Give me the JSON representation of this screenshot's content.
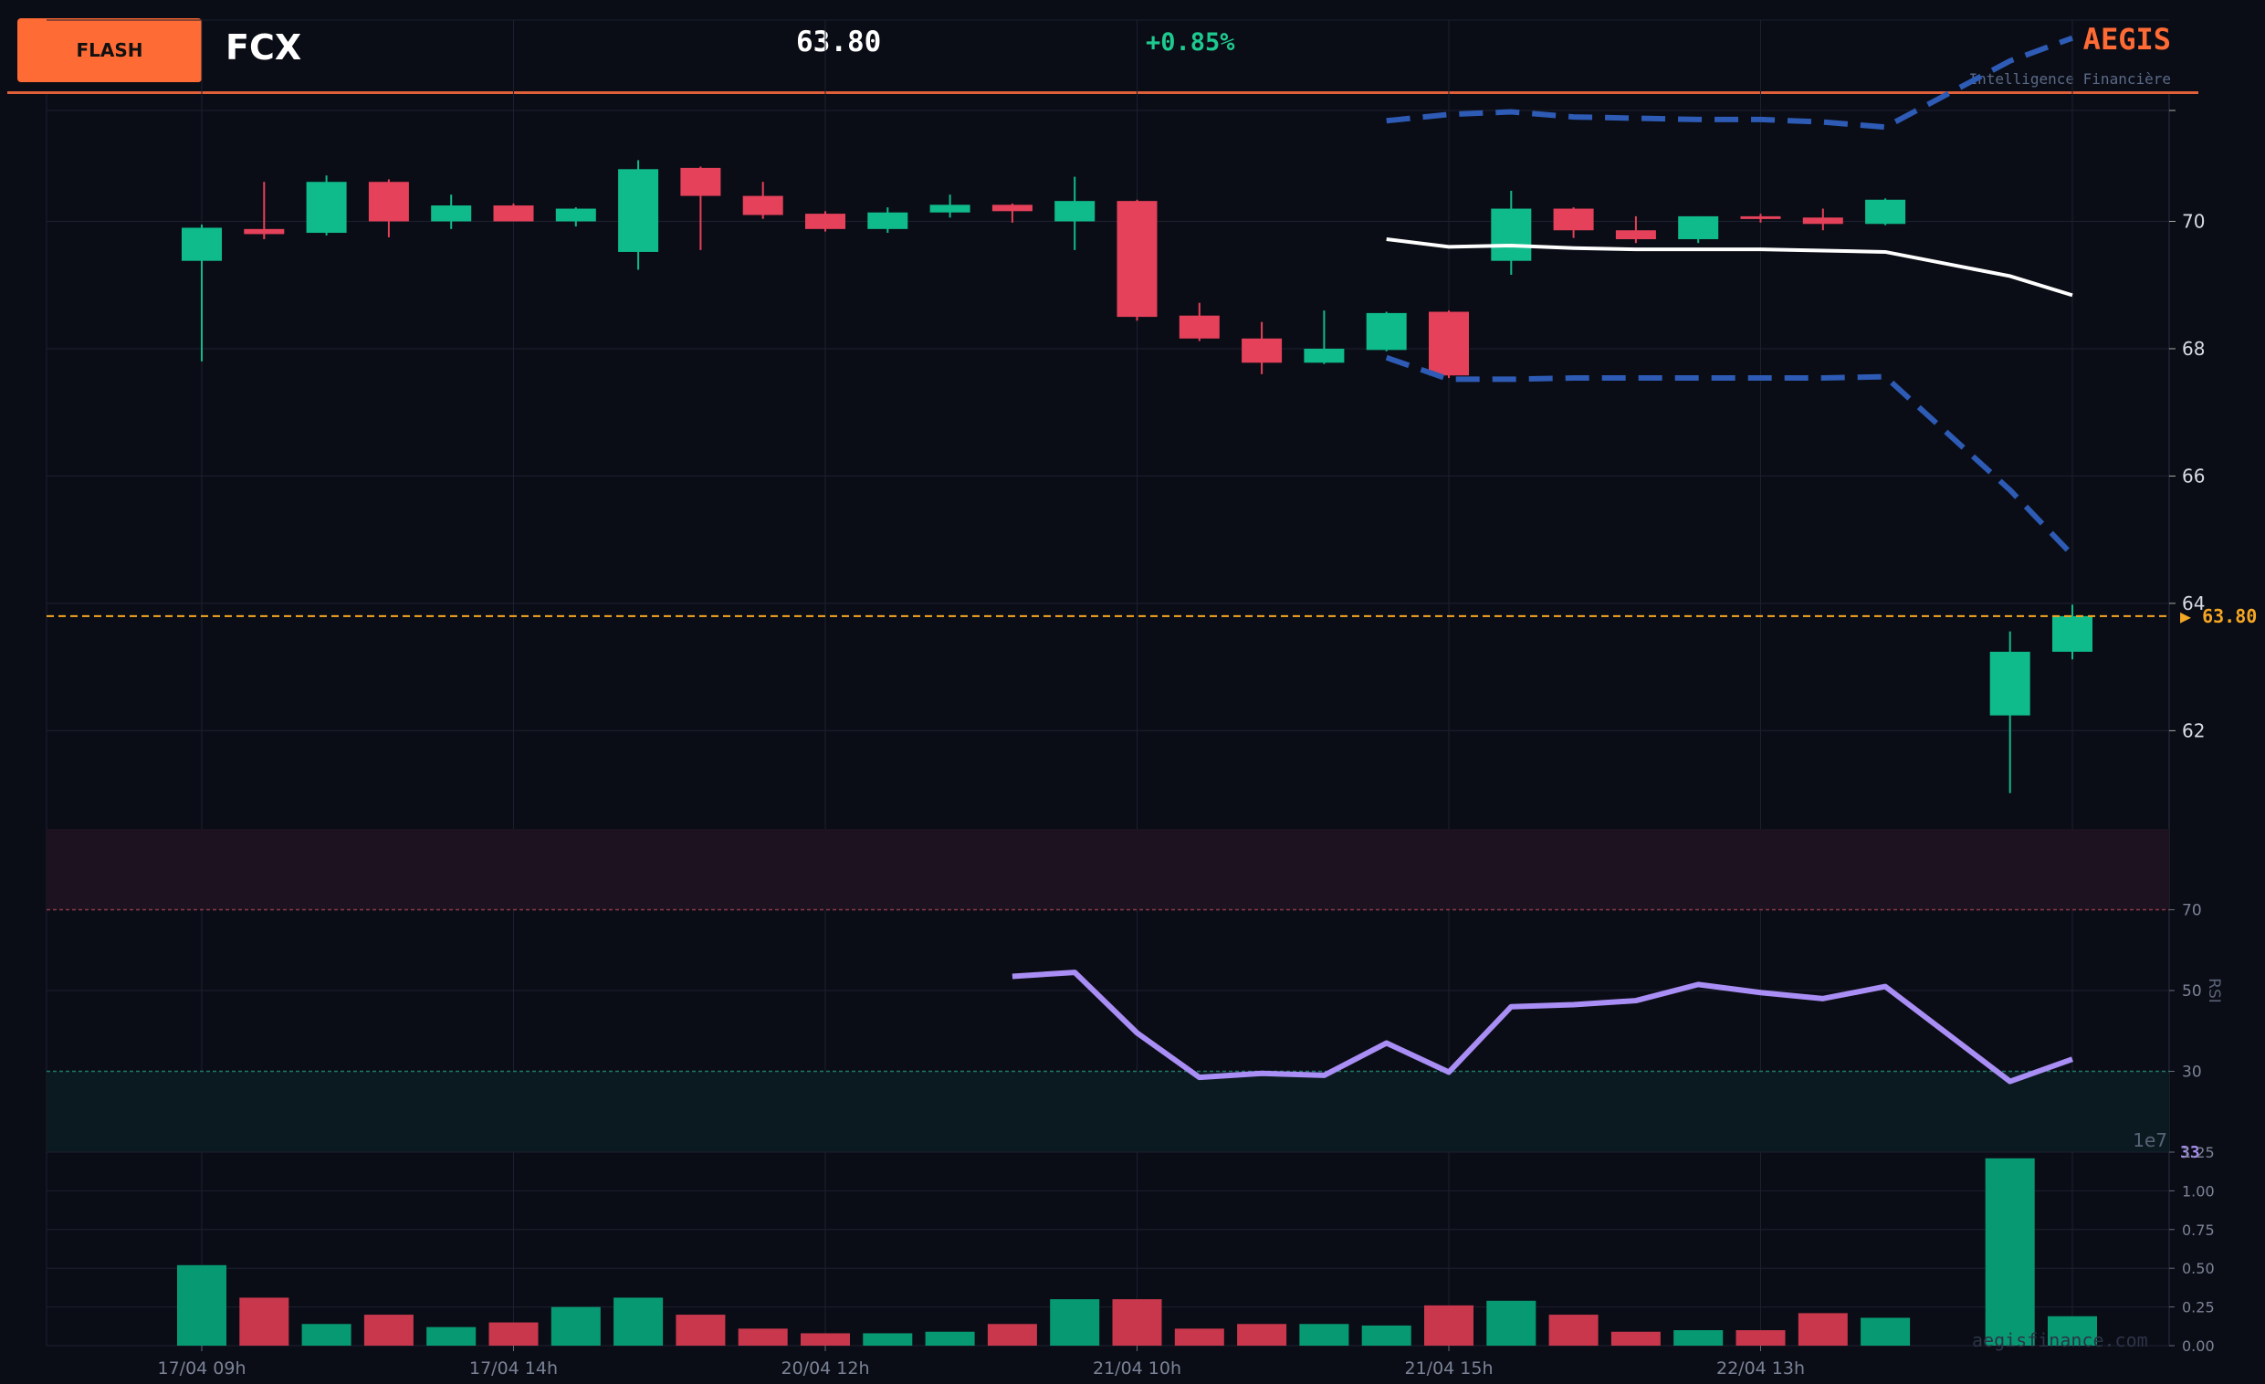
{
  "header": {
    "badge": "FLASH",
    "ticker": "FCX",
    "price": "63.80",
    "change": "+0.85%",
    "brand": "AEGIS",
    "tagline": "Intelligence Financière"
  },
  "footer": {
    "watermark": "aegisfinance.com"
  },
  "colors": {
    "up": "#0fbb8a",
    "down": "#e5415a",
    "accent": "#ff6b35",
    "rsi": "#a98ef5",
    "band": "#2d5bb5",
    "mid": "#ffffff",
    "last": "#f5a623"
  },
  "chart_data": [
    {
      "type": "candlestick",
      "title": "",
      "ylim": [
        60.5,
        72
      ],
      "y_ticks": [
        "62",
        "64",
        "66",
        "68",
        "70"
      ],
      "x_tick_labels": [
        {
          "index": 0,
          "label": "17/04 09h"
        },
        {
          "index": 5,
          "label": "17/04 14h"
        },
        {
          "index": 10,
          "label": "20/04 12h"
        },
        {
          "index": 15,
          "label": "21/04 10h"
        },
        {
          "index": 20,
          "label": "21/04 15h"
        },
        {
          "index": 25,
          "label": "22/04 13h"
        }
      ],
      "last_price": 63.8,
      "last_price_label": "▶ 63.80",
      "candles": [
        {
          "o": 69.38,
          "h": 69.95,
          "l": 67.8,
          "c": 69.9
        },
        {
          "o": 69.88,
          "h": 70.62,
          "l": 69.72,
          "c": 69.8
        },
        {
          "o": 69.82,
          "h": 70.72,
          "l": 69.78,
          "c": 70.62
        },
        {
          "o": 70.62,
          "h": 70.66,
          "l": 69.75,
          "c": 70.0
        },
        {
          "o": 70.0,
          "h": 70.42,
          "l": 69.88,
          "c": 70.25
        },
        {
          "o": 70.25,
          "h": 70.28,
          "l": 70.0,
          "c": 70.0
        },
        {
          "o": 70.0,
          "h": 70.22,
          "l": 69.92,
          "c": 70.2
        },
        {
          "o": 69.52,
          "h": 70.96,
          "l": 69.24,
          "c": 70.82
        },
        {
          "o": 70.84,
          "h": 70.86,
          "l": 69.55,
          "c": 70.4
        },
        {
          "o": 70.4,
          "h": 70.62,
          "l": 70.04,
          "c": 70.1
        },
        {
          "o": 70.12,
          "h": 70.16,
          "l": 69.84,
          "c": 69.88
        },
        {
          "o": 69.88,
          "h": 70.22,
          "l": 69.82,
          "c": 70.14
        },
        {
          "o": 70.14,
          "h": 70.42,
          "l": 70.06,
          "c": 70.26
        },
        {
          "o": 70.26,
          "h": 70.28,
          "l": 69.98,
          "c": 70.16
        },
        {
          "o": 70.0,
          "h": 70.7,
          "l": 69.55,
          "c": 70.32
        },
        {
          "o": 70.32,
          "h": 70.34,
          "l": 68.44,
          "c": 68.5
        },
        {
          "o": 68.52,
          "h": 68.72,
          "l": 68.12,
          "c": 68.16
        },
        {
          "o": 68.16,
          "h": 68.42,
          "l": 67.6,
          "c": 67.78
        },
        {
          "o": 67.78,
          "h": 68.6,
          "l": 67.76,
          "c": 68.0
        },
        {
          "o": 67.98,
          "h": 68.58,
          "l": 67.96,
          "c": 68.56
        },
        {
          "o": 68.58,
          "h": 68.6,
          "l": 67.54,
          "c": 67.58
        },
        {
          "o": 69.38,
          "h": 70.48,
          "l": 69.16,
          "c": 70.2
        },
        {
          "o": 70.2,
          "h": 70.22,
          "l": 69.74,
          "c": 69.86
        },
        {
          "o": 69.86,
          "h": 70.08,
          "l": 69.66,
          "c": 69.72
        },
        {
          "o": 69.72,
          "h": 70.08,
          "l": 69.66,
          "c": 70.08
        },
        {
          "o": 70.08,
          "h": 70.12,
          "l": 69.98,
          "c": 70.04
        },
        {
          "o": 70.06,
          "h": 70.2,
          "l": 69.86,
          "c": 69.96
        },
        {
          "o": 69.96,
          "h": 70.36,
          "l": 69.94,
          "c": 70.34
        },
        {
          "o": 62.24,
          "h": 63.56,
          "l": 61.02,
          "c": 63.24
        },
        {
          "o": 63.24,
          "h": 63.98,
          "l": 63.12,
          "c": 63.8
        }
      ],
      "bollinger": {
        "start_index": 19,
        "upper": [
          71.58,
          71.68,
          71.72,
          71.64,
          71.62,
          71.6,
          71.6,
          71.56,
          71.48,
          72.52,
          72.88
        ],
        "middle": [
          69.72,
          69.6,
          69.62,
          69.58,
          69.56,
          69.56,
          69.56,
          69.54,
          69.52,
          69.14,
          68.84
        ],
        "lower": [
          67.86,
          67.52,
          67.52,
          67.54,
          67.54,
          67.54,
          67.54,
          67.54,
          67.56,
          65.78,
          64.76
        ]
      }
    },
    {
      "type": "line",
      "ylabel": "RSI",
      "ylim": [
        10,
        90
      ],
      "y_ticks": [
        "30",
        "50",
        "70"
      ],
      "overbought": 70,
      "oversold": 30,
      "start_index": 13,
      "values": [
        53.5,
        54.5,
        39.5,
        28.5,
        29.5,
        29.0,
        37.0,
        29.8,
        46.0,
        46.5,
        47.5,
        51.5,
        49.5,
        48.0,
        51.0,
        27.5,
        33.0
      ],
      "last_label": "33"
    },
    {
      "type": "bar",
      "ylim": [
        0,
        1.25
      ],
      "scale_label": "1e7",
      "y_ticks": [
        "0.00",
        "0.25",
        "0.50",
        "0.75",
        "1.00",
        "1.25"
      ],
      "values": [
        0.52,
        0.31,
        0.14,
        0.2,
        0.12,
        0.15,
        0.25,
        0.31,
        0.2,
        0.11,
        0.08,
        0.08,
        0.09,
        0.14,
        0.3,
        0.3,
        0.11,
        0.14,
        0.14,
        0.13,
        0.26,
        0.29,
        0.2,
        0.09,
        0.1,
        0.1,
        0.21,
        0.18,
        1.21,
        0.19
      ],
      "directions": [
        "up",
        "down",
        "up",
        "down",
        "up",
        "down",
        "up",
        "up",
        "down",
        "down",
        "down",
        "up",
        "up",
        "down",
        "up",
        "down",
        "down",
        "down",
        "up",
        "up",
        "down",
        "up",
        "down",
        "down",
        "up",
        "down",
        "down",
        "up",
        "up",
        "up"
      ]
    }
  ]
}
